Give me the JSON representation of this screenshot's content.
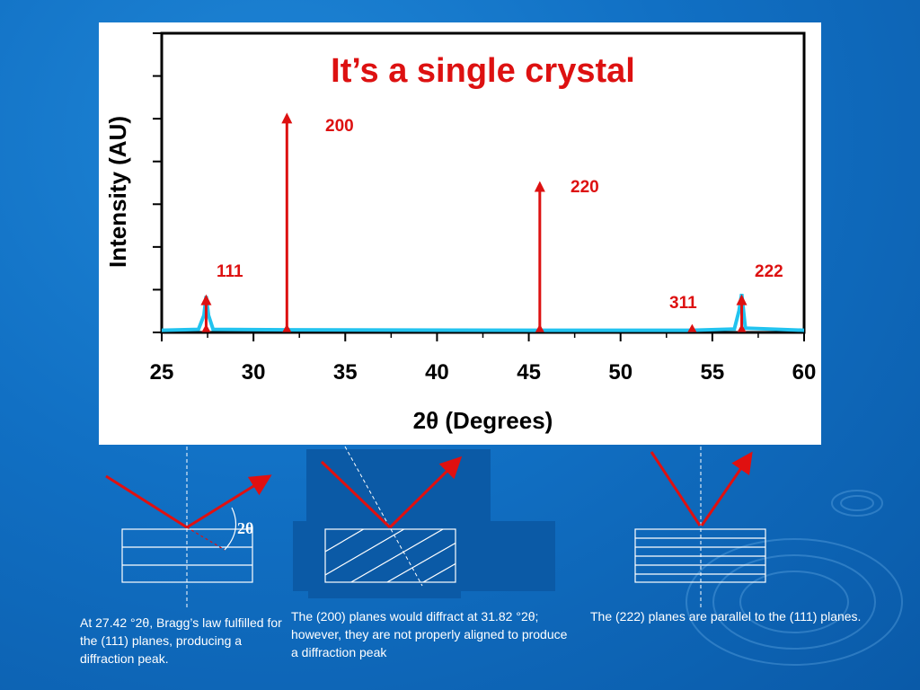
{
  "chart_data": {
    "type": "line",
    "title": "It’s a single crystal",
    "xlabel": "2θ (Degrees)",
    "ylabel": "Intensity (AU)",
    "xlim": [
      25,
      60
    ],
    "x_ticks": [
      25,
      30,
      35,
      40,
      45,
      50,
      55,
      60
    ],
    "ylim": [
      0,
      7
    ],
    "series": [
      {
        "x": [
          25,
          27.0,
          27.3,
          27.42,
          27.55,
          27.8,
          31.82,
          45.5,
          53.9,
          56.2,
          56.45,
          56.6,
          56.8,
          60
        ],
        "values": [
          0.05,
          0.07,
          0.4,
          0.85,
          0.4,
          0.07,
          0.06,
          0.05,
          0.05,
          0.08,
          0.5,
          0.9,
          0.1,
          0.05
        ]
      }
    ],
    "reflections": [
      {
        "label": "111",
        "x": 27.42,
        "height": 0.85
      },
      {
        "label": "200",
        "x": 31.82,
        "height": 5.1
      },
      {
        "label": "220",
        "x": 45.6,
        "height": 3.5
      },
      {
        "label": "311",
        "x": 53.9,
        "height": 0.0
      },
      {
        "label": "222",
        "x": 56.6,
        "height": 0.85
      }
    ],
    "colors": {
      "trace": "#22c3ef",
      "marker": "#dd1111",
      "title": "#dd1111"
    }
  },
  "diagrams": {
    "angle_label": "2θ"
  },
  "captions": {
    "left": "At 27.42 °2θ, Bragg’s law fulfilled for the (111) planes, producing a diffraction peak.",
    "middle": "The (200) planes would diffract at 31.82 °2θ; however, they are not properly aligned to produce a diffraction peak",
    "right": "The (222) planes are parallel to the (111) planes."
  }
}
